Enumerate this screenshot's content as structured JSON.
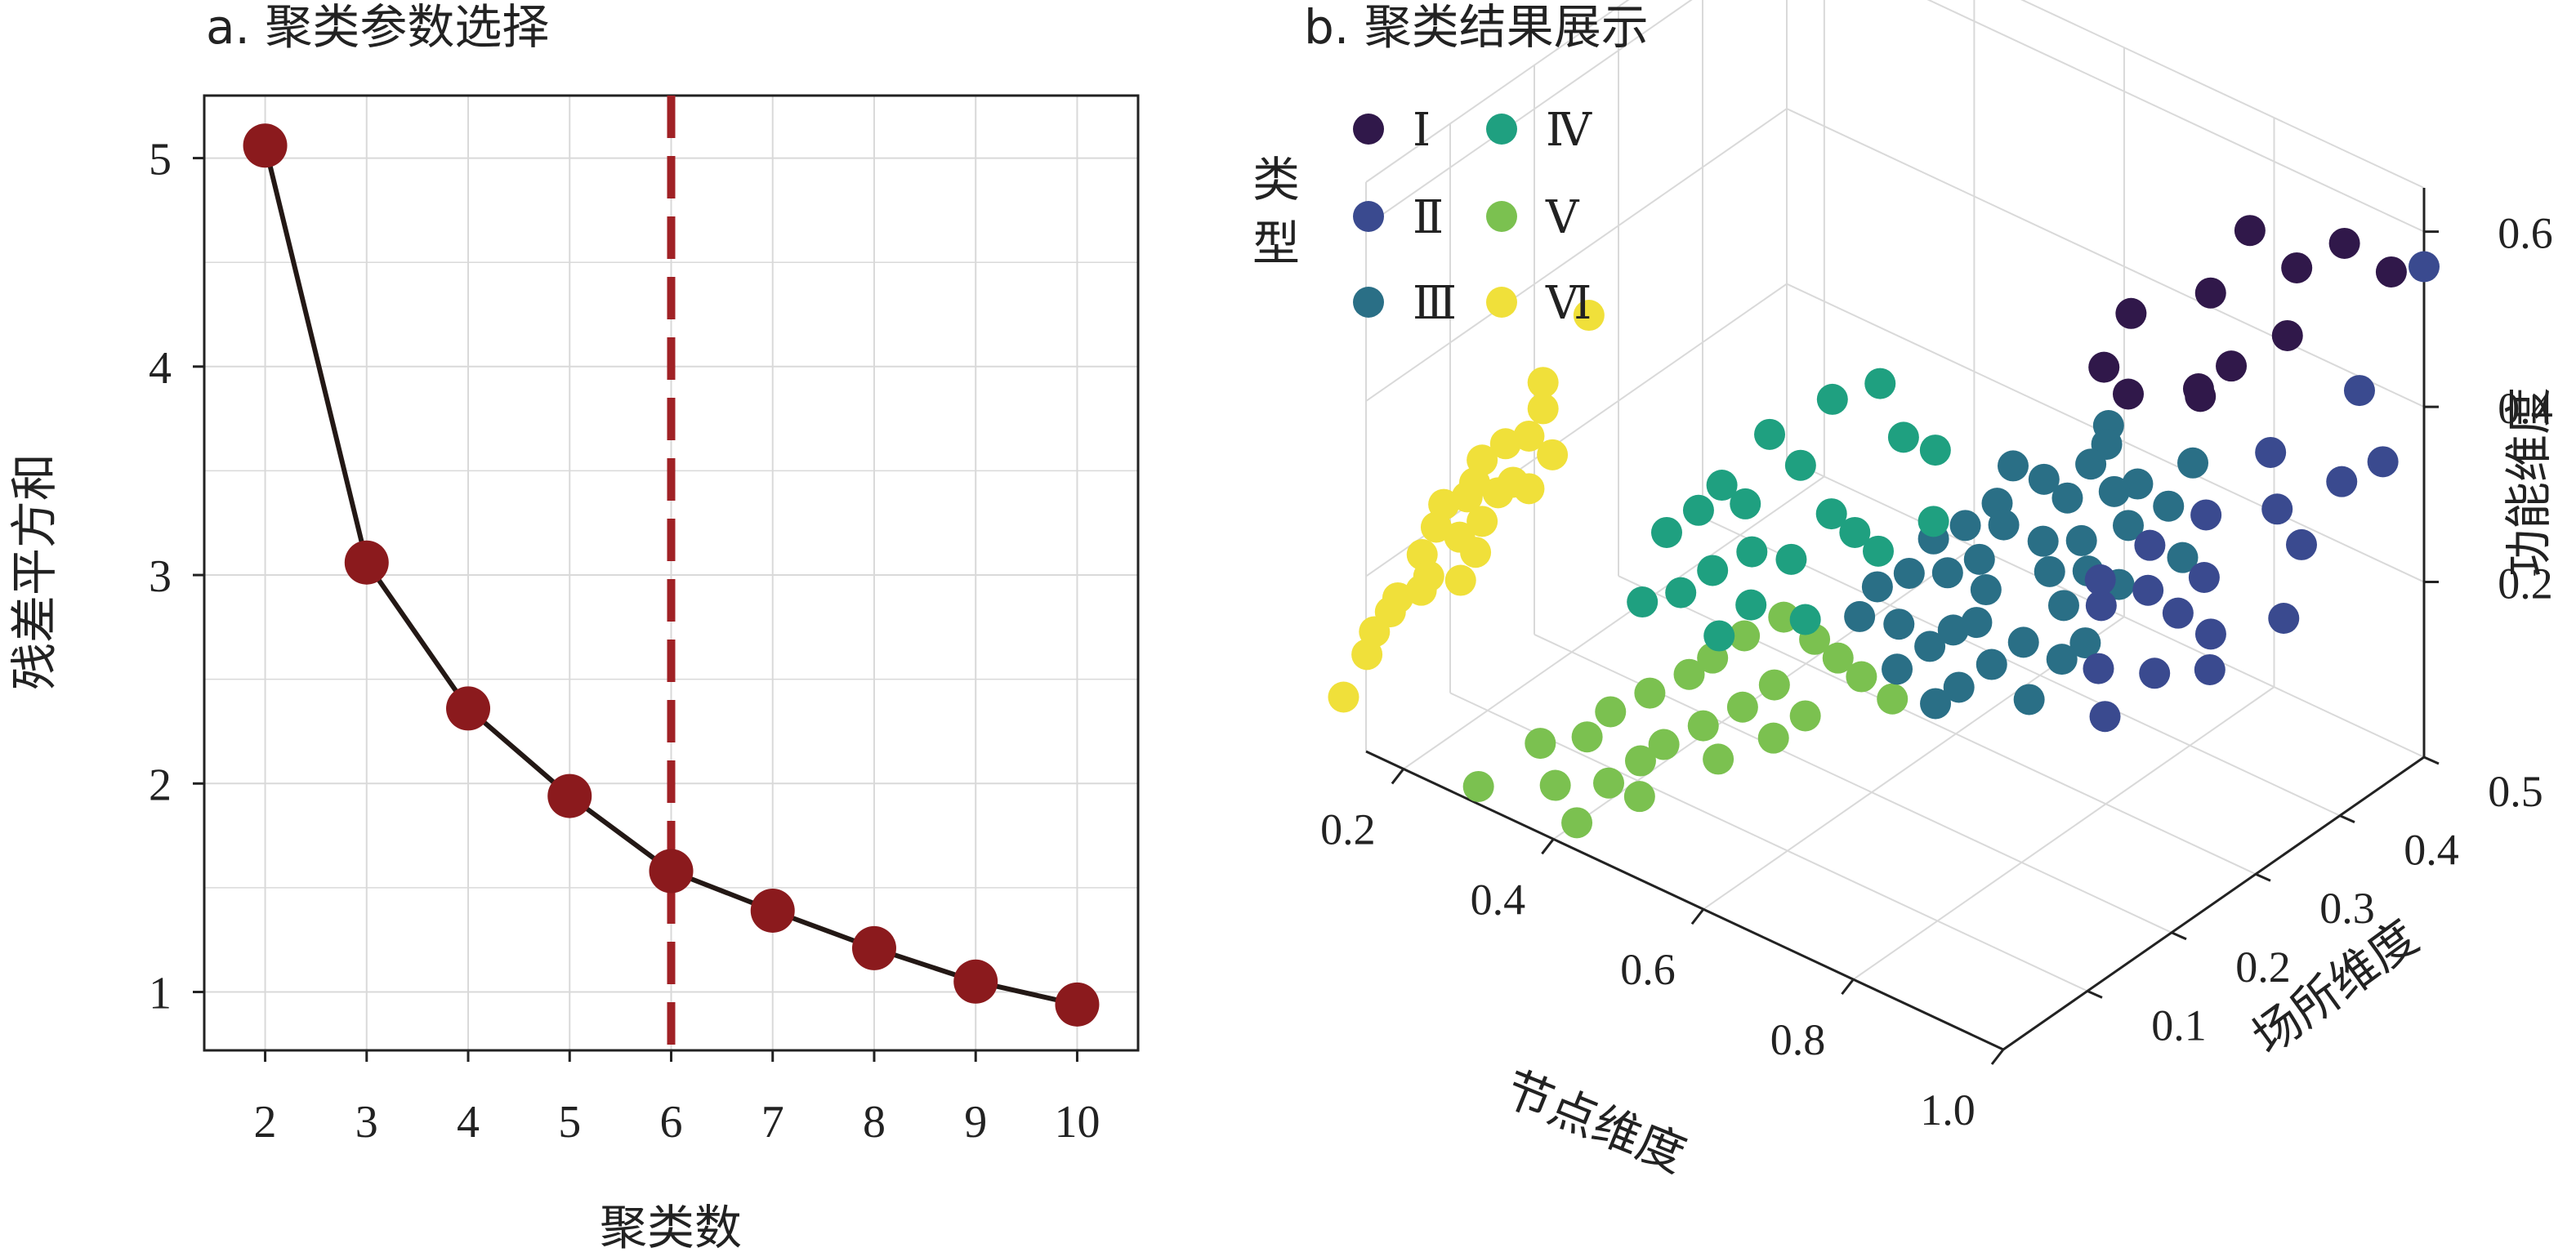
{
  "colors": {
    "line": "#231815",
    "point": "#8b1a1d",
    "dashed": "#a02125",
    "grid": "#d9d9d9",
    "axis": "#222222",
    "cluster_I": "#30184a",
    "cluster_II": "#3a4a8f",
    "cluster_III": "#2a6f86",
    "cluster_IV": "#1fa080",
    "cluster_V": "#7bc150",
    "cluster_VI": "#f0e03a"
  },
  "chart_data": [
    {
      "type": "line",
      "title": "a. 聚类参数选择",
      "xlabel": "聚类数",
      "ylabel": "残差平方和",
      "x": [
        2,
        3,
        4,
        5,
        6,
        7,
        8,
        9,
        10
      ],
      "y": [
        5.06,
        3.06,
        2.36,
        1.94,
        1.58,
        1.39,
        1.21,
        1.05,
        0.94
      ],
      "xlim": [
        1.4,
        10.6
      ],
      "ylim": [
        0.72,
        5.3
      ],
      "xticks": [
        "2",
        "3",
        "4",
        "5",
        "6",
        "7",
        "8",
        "9",
        "10"
      ],
      "yticks": [
        "1",
        "2",
        "3",
        "4",
        "5"
      ],
      "vline_x": 6,
      "grid": true
    },
    {
      "type": "scatter",
      "title": "b. 聚类结果展示",
      "xlabel": "节点维度",
      "ylabel": "场所维度",
      "zlabel": "功能维度",
      "xticks": [
        "0.2",
        "0.4",
        "0.6",
        "0.8",
        "1.0"
      ],
      "yticks": [
        "0.1",
        "0.2",
        "0.3",
        "0.4",
        "0.5"
      ],
      "zticks": [
        "0.2",
        "0.4",
        "0.6"
      ],
      "legend_title": "类型",
      "legend_position": "top-left",
      "series": [
        {
          "name": "Ⅰ",
          "color": "#30184a",
          "points": [
            [
              0.88,
              0.4,
              0.62
            ],
            [
              0.85,
              0.38,
              0.55
            ],
            [
              0.92,
              0.42,
              0.58
            ],
            [
              0.8,
              0.33,
              0.54
            ],
            [
              0.9,
              0.36,
              0.5
            ],
            [
              0.95,
              0.45,
              0.6
            ],
            [
              0.83,
              0.3,
              0.48
            ],
            [
              0.87,
              0.35,
              0.46
            ],
            [
              0.99,
              0.47,
              0.57
            ],
            [
              0.93,
              0.4,
              0.52
            ],
            [
              0.82,
              0.28,
              0.52
            ],
            [
              0.89,
              0.33,
              0.49
            ]
          ]
        },
        {
          "name": "Ⅱ",
          "color": "#3a4a8f",
          "points": [
            [
              1.0,
              0.5,
              0.56
            ],
            [
              0.97,
              0.45,
              0.44
            ],
            [
              0.93,
              0.38,
              0.4
            ],
            [
              0.95,
              0.37,
              0.35
            ],
            [
              0.98,
              0.42,
              0.36
            ],
            [
              0.9,
              0.33,
              0.35
            ],
            [
              0.92,
              0.31,
              0.3
            ],
            [
              0.99,
              0.46,
              0.36
            ],
            [
              0.87,
              0.29,
              0.33
            ],
            [
              0.96,
              0.39,
              0.3
            ],
            [
              0.89,
              0.27,
              0.3
            ],
            [
              0.94,
              0.3,
              0.25
            ],
            [
              0.85,
              0.25,
              0.28
            ],
            [
              0.97,
              0.36,
              0.24
            ],
            [
              0.91,
              0.26,
              0.22
            ],
            [
              0.88,
              0.22,
              0.24
            ],
            [
              0.95,
              0.29,
              0.22
            ],
            [
              0.86,
              0.24,
              0.32
            ],
            [
              0.93,
              0.27,
              0.29
            ],
            [
              0.9,
              0.21,
              0.2
            ]
          ]
        },
        {
          "name": "Ⅲ",
          "color": "#2a6f86",
          "points": [
            [
              0.7,
              0.26,
              0.33
            ],
            [
              0.74,
              0.28,
              0.36
            ],
            [
              0.78,
              0.3,
              0.38
            ],
            [
              0.8,
              0.31,
              0.35
            ],
            [
              0.76,
              0.29,
              0.34
            ],
            [
              0.82,
              0.32,
              0.36
            ],
            [
              0.72,
              0.25,
              0.32
            ],
            [
              0.68,
              0.24,
              0.31
            ],
            [
              0.75,
              0.27,
              0.3
            ],
            [
              0.79,
              0.28,
              0.31
            ],
            [
              0.83,
              0.3,
              0.33
            ],
            [
              0.71,
              0.23,
              0.29
            ],
            [
              0.77,
              0.26,
              0.28
            ],
            [
              0.81,
              0.27,
              0.29
            ],
            [
              0.73,
              0.22,
              0.27
            ],
            [
              0.69,
              0.21,
              0.28
            ],
            [
              0.85,
              0.33,
              0.34
            ],
            [
              0.66,
              0.22,
              0.3
            ],
            [
              0.74,
              0.2,
              0.25
            ],
            [
              0.8,
              0.25,
              0.26
            ],
            [
              0.78,
              0.22,
              0.23
            ],
            [
              0.72,
              0.19,
              0.24
            ],
            [
              0.84,
              0.28,
              0.28
            ],
            [
              0.76,
              0.2,
              0.21
            ],
            [
              0.7,
              0.18,
              0.22
            ],
            [
              0.82,
              0.23,
              0.22
            ],
            [
              0.65,
              0.2,
              0.27
            ],
            [
              0.79,
              0.31,
              0.4
            ],
            [
              0.86,
              0.35,
              0.38
            ],
            [
              0.67,
              0.17,
              0.24
            ],
            [
              0.75,
              0.17,
              0.2
            ],
            [
              0.81,
              0.2,
              0.19
            ],
            [
              0.63,
              0.18,
              0.26
            ],
            [
              0.88,
              0.32,
              0.3
            ],
            [
              0.71,
              0.27,
              0.37
            ],
            [
              0.77,
              0.33,
              0.4
            ],
            [
              0.69,
              0.15,
              0.21
            ],
            [
              0.84,
              0.24,
              0.24
            ],
            [
              0.64,
              0.15,
              0.25
            ],
            [
              0.73,
              0.16,
              0.18
            ]
          ]
        },
        {
          "name": "Ⅳ",
          "color": "#1fa080",
          "points": [
            [
              0.57,
              0.18,
              0.45
            ],
            [
              0.6,
              0.21,
              0.46
            ],
            [
              0.52,
              0.15,
              0.41
            ],
            [
              0.49,
              0.12,
              0.36
            ],
            [
              0.55,
              0.16,
              0.38
            ],
            [
              0.62,
              0.22,
              0.4
            ],
            [
              0.51,
              0.13,
              0.34
            ],
            [
              0.58,
              0.17,
              0.33
            ],
            [
              0.47,
              0.11,
              0.33
            ],
            [
              0.64,
              0.24,
              0.38
            ],
            [
              0.53,
              0.12,
              0.3
            ],
            [
              0.6,
              0.18,
              0.31
            ],
            [
              0.45,
              0.09,
              0.31
            ],
            [
              0.56,
              0.14,
              0.29
            ],
            [
              0.5,
              0.1,
              0.28
            ],
            [
              0.62,
              0.19,
              0.29
            ],
            [
              0.48,
              0.08,
              0.26
            ],
            [
              0.54,
              0.11,
              0.25
            ],
            [
              0.66,
              0.22,
              0.32
            ],
            [
              0.59,
              0.13,
              0.24
            ],
            [
              0.44,
              0.07,
              0.24
            ],
            [
              0.52,
              0.09,
              0.22
            ]
          ]
        },
        {
          "name": "Ⅴ",
          "color": "#7bc150",
          "points": [
            [
              0.52,
              0.12,
              0.2
            ],
            [
              0.55,
              0.14,
              0.22
            ],
            [
              0.58,
              0.15,
              0.2
            ],
            [
              0.6,
              0.16,
              0.18
            ],
            [
              0.5,
              0.1,
              0.18
            ],
            [
              0.56,
              0.12,
              0.16
            ],
            [
              0.62,
              0.17,
              0.16
            ],
            [
              0.48,
              0.09,
              0.16
            ],
            [
              0.54,
              0.1,
              0.14
            ],
            [
              0.59,
              0.13,
              0.13
            ],
            [
              0.45,
              0.07,
              0.14
            ],
            [
              0.51,
              0.08,
              0.12
            ],
            [
              0.57,
              0.11,
              0.11
            ],
            [
              0.42,
              0.05,
              0.12
            ],
            [
              0.48,
              0.06,
              0.1
            ],
            [
              0.53,
              0.08,
              0.09
            ],
            [
              0.4,
              0.04,
              0.09
            ],
            [
              0.46,
              0.05,
              0.08
            ],
            [
              0.36,
              0.02,
              0.08
            ],
            [
              0.44,
              0.03,
              0.06
            ],
            [
              0.38,
              0.02,
              0.04
            ],
            [
              0.42,
              0.01,
              0.02
            ],
            [
              0.3,
              0.0,
              0.02
            ],
            [
              0.47,
              0.04,
              0.05
            ],
            [
              0.65,
              0.18,
              0.14
            ]
          ]
        },
        {
          "name": "Ⅵ",
          "color": "#f0e03a",
          "points": [
            [
              0.38,
              0.06,
              0.55
            ],
            [
              0.33,
              0.05,
              0.46
            ],
            [
              0.33,
              0.05,
              0.43
            ],
            [
              0.3,
              0.06,
              0.38
            ],
            [
              0.28,
              0.05,
              0.37
            ],
            [
              0.32,
              0.07,
              0.36
            ],
            [
              0.26,
              0.04,
              0.35
            ],
            [
              0.29,
              0.05,
              0.33
            ],
            [
              0.25,
              0.04,
              0.32
            ],
            [
              0.27,
              0.05,
              0.31
            ],
            [
              0.24,
              0.04,
              0.3
            ],
            [
              0.3,
              0.06,
              0.32
            ],
            [
              0.22,
              0.03,
              0.29
            ],
            [
              0.26,
              0.04,
              0.28
            ],
            [
              0.21,
              0.03,
              0.26
            ],
            [
              0.23,
              0.04,
              0.25
            ],
            [
              0.24,
              0.05,
              0.23
            ],
            [
              0.2,
              0.03,
              0.2
            ],
            [
              0.17,
              0.02,
              0.17
            ],
            [
              0.19,
              0.03,
              0.18
            ],
            [
              0.16,
              0.02,
              0.15
            ],
            [
              0.15,
              0.01,
              0.13
            ],
            [
              0.14,
              0.01,
              0.1
            ],
            [
              0.12,
              0.0,
              0.05
            ],
            [
              0.18,
              0.04,
              0.21
            ],
            [
              0.22,
              0.05,
              0.19
            ]
          ]
        }
      ]
    }
  ]
}
